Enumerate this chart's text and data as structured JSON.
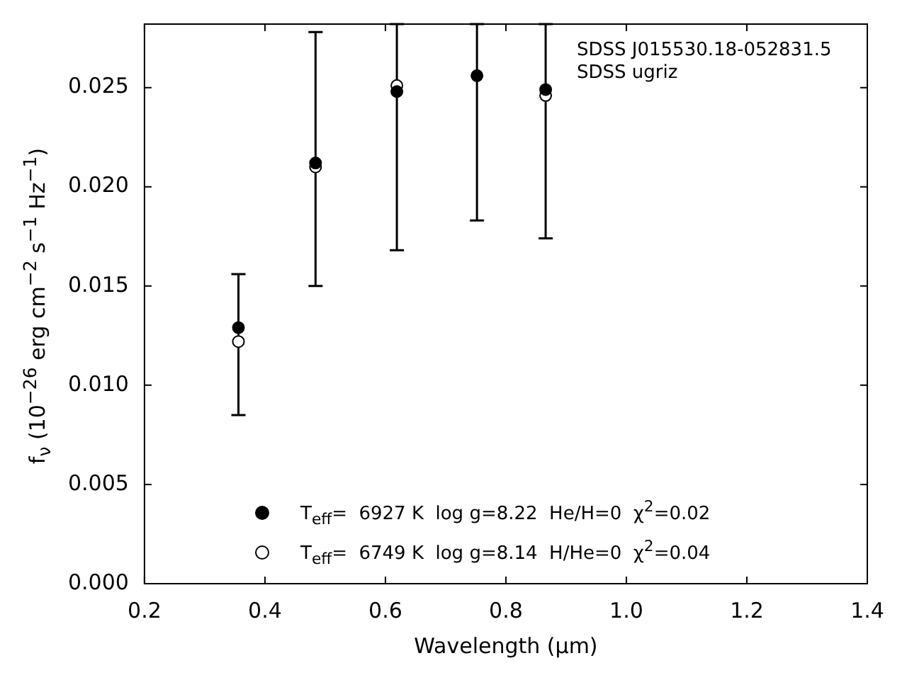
{
  "chart_data": {
    "type": "scatter",
    "xlabel": "Wavelength (μm)",
    "ylabel": "f$_{ν}$ (10$^{−26}$ erg cm$^{−2}$ s$^{−1}$ Hz$^{−1}$)",
    "annotations": [
      "SDSS J015530.18-052831.5",
      "SDSS ugriz"
    ],
    "x": [
      0.356,
      0.484,
      0.619,
      0.752,
      0.866
    ],
    "series": [
      {
        "name": "T$_{eff}$=  6927 K  log g=8.22  He/H=0  χ$^{2}$=0.02",
        "color": "#000000",
        "values": [
          0.0129,
          0.0212,
          0.0248,
          0.0256,
          0.0249
        ],
        "errors": [
          [
            0.0085,
            0.0156
          ],
          [
            0.015,
            0.0278
          ],
          [
            0.0168,
            0.0282
          ],
          [
            0.0183,
            0.0282
          ],
          [
            0.0174,
            0.0282
          ]
        ]
      },
      {
        "name": "T$_{eff}$=  6749 K  log g=8.14  H/He=0  χ$^{2}$=0.04",
        "color": "#ffffff",
        "values": [
          0.0122,
          0.021,
          0.0251,
          null,
          0.0246
        ]
      }
    ],
    "xlim": [
      0.2,
      1.4
    ],
    "xticks": [
      0.2,
      0.4,
      0.6,
      0.8,
      {
        "value": 1,
        "label": "1.0"
      },
      1.2,
      1.4
    ],
    "ylim": [
      0,
      0.0282
    ],
    "yticks": [
      {
        "value": 0,
        "label": "0.000"
      },
      {
        "value": 0.005,
        "label": "0.005"
      },
      {
        "value": 0.01,
        "label": "0.010"
      },
      {
        "value": 0.015,
        "label": "0.015"
      },
      {
        "value": 0.02,
        "label": "0.020"
      },
      {
        "value": 0.025,
        "label": "0.025"
      }
    ],
    "grid": false,
    "legend": "bottom",
    "marker": "circle"
  }
}
